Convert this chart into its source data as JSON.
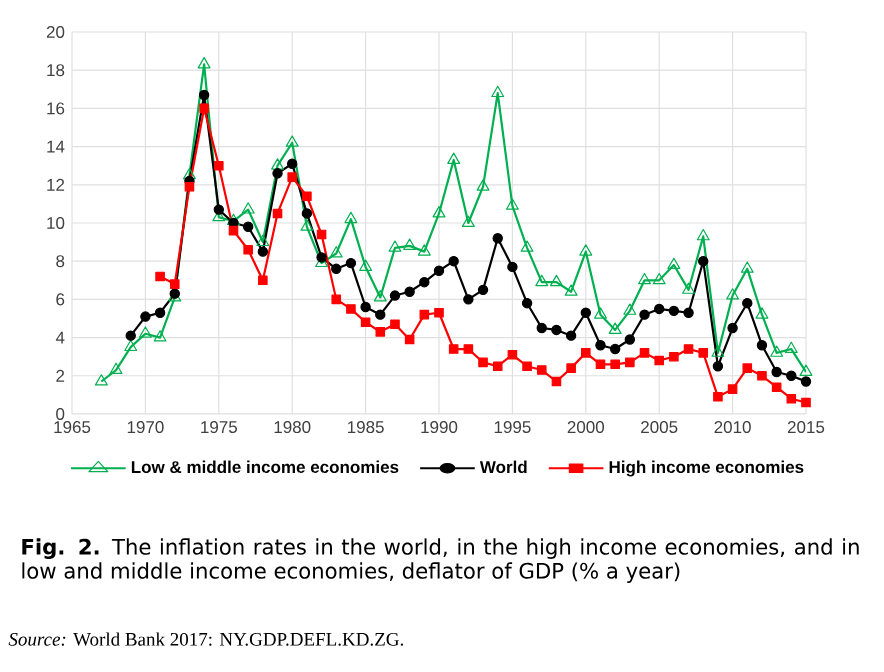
{
  "chart_data": {
    "type": "line",
    "x": [
      1967,
      1968,
      1969,
      1970,
      1971,
      1972,
      1973,
      1974,
      1975,
      1976,
      1977,
      1978,
      1979,
      1980,
      1981,
      1982,
      1983,
      1984,
      1985,
      1986,
      1987,
      1988,
      1989,
      1990,
      1991,
      1992,
      1993,
      1994,
      1995,
      1996,
      1997,
      1998,
      1999,
      2000,
      2001,
      2002,
      2003,
      2004,
      2005,
      2006,
      2007,
      2008,
      2009,
      2010,
      2011,
      2012,
      2013,
      2014,
      2015
    ],
    "series": [
      {
        "name": "Low & middle income economies",
        "color": "#00b050",
        "marker": "triangle",
        "values": [
          1.7,
          2.3,
          3.5,
          4.2,
          4.0,
          6.1,
          12.5,
          18.3,
          10.3,
          10.1,
          10.7,
          9.0,
          13.0,
          14.2,
          9.8,
          7.9,
          8.4,
          10.2,
          7.7,
          6.1,
          8.7,
          8.8,
          8.5,
          10.5,
          13.3,
          10.0,
          11.9,
          16.8,
          10.9,
          8.7,
          6.9,
          6.9,
          6.4,
          8.5,
          5.2,
          4.4,
          5.4,
          7.0,
          7.0,
          7.8,
          6.5,
          9.3,
          3.2,
          6.2,
          7.6,
          5.2,
          3.2,
          3.4,
          2.2
        ]
      },
      {
        "name": "World",
        "color": "#000000",
        "marker": "circle",
        "values": [
          null,
          null,
          4.1,
          5.1,
          5.3,
          6.3,
          12.2,
          16.7,
          10.7,
          10.0,
          9.8,
          8.5,
          12.6,
          13.1,
          10.5,
          8.2,
          7.6,
          7.9,
          5.6,
          5.2,
          6.2,
          6.4,
          6.9,
          7.5,
          8.0,
          6.0,
          6.5,
          9.2,
          7.7,
          5.8,
          4.5,
          4.4,
          4.1,
          5.3,
          3.6,
          3.4,
          3.9,
          5.2,
          5.5,
          5.4,
          5.3,
          8.0,
          2.5,
          4.5,
          5.8,
          3.6,
          2.2,
          2.0,
          1.7
        ]
      },
      {
        "name": "High income economies",
        "color": "#ff0000",
        "marker": "square",
        "values": [
          null,
          null,
          null,
          null,
          7.2,
          6.8,
          11.9,
          16.0,
          13.0,
          9.6,
          8.6,
          7.0,
          10.5,
          12.4,
          11.4,
          9.4,
          6.0,
          5.5,
          4.8,
          4.3,
          4.7,
          3.9,
          5.2,
          5.3,
          3.4,
          3.4,
          2.7,
          2.5,
          3.1,
          2.5,
          2.3,
          1.7,
          2.4,
          3.2,
          2.6,
          2.6,
          2.7,
          3.2,
          2.8,
          3.0,
          3.4,
          3.2,
          0.9,
          1.3,
          2.4,
          2.0,
          1.4,
          0.8,
          0.6
        ]
      }
    ],
    "xlim": [
      1965,
      2015
    ],
    "xticks": [
      1965,
      1970,
      1975,
      1980,
      1985,
      1990,
      1995,
      2000,
      2005,
      2010,
      2015
    ],
    "ylim": [
      0,
      20
    ],
    "yticks": [
      0,
      2,
      4,
      6,
      8,
      10,
      12,
      14,
      16,
      18,
      20
    ],
    "grid": true,
    "legend": "bottom",
    "line_style": "solid",
    "annotations": [
      "**Fig. 2.** The inflation rates in the world, in the high income economies, and in low and middle income economies, deflator of GDP (% a year)",
      "*Source:* World Bank 2017: NY.GDP.DEFL.KD.ZG."
    ]
  }
}
